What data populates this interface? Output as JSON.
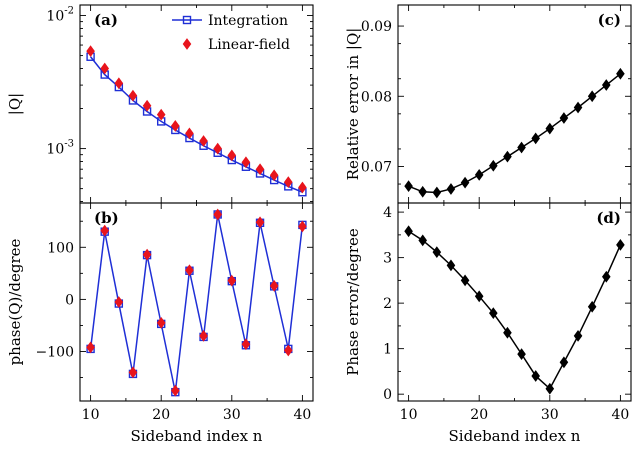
{
  "colors": {
    "integration": "#1f2fd6",
    "linear_field": "#e8141c",
    "error_series": "#000000"
  },
  "chart_data": [
    {
      "id": "a",
      "type": "line",
      "panel_label": "(a)",
      "ylabel": "|Q|",
      "yscale": "log",
      "ylim": [
        0.00039,
        0.012
      ],
      "yticks": [
        {
          "value": 0.001,
          "label": "10",
          "exp": "-3"
        },
        {
          "value": 0.01,
          "label": "10",
          "exp": "-2"
        }
      ],
      "xlim": [
        8.5,
        41.5
      ],
      "legend_position": "top-right",
      "series": [
        {
          "name": "Integration",
          "marker": "square",
          "x": [
            10,
            12,
            14,
            16,
            18,
            20,
            22,
            24,
            26,
            28,
            30,
            32,
            34,
            36,
            38,
            40
          ],
          "y": [
            0.0049,
            0.0036,
            0.0029,
            0.0023,
            0.0019,
            0.0016,
            0.00138,
            0.0012,
            0.00105,
            0.00093,
            0.00082,
            0.00073,
            0.00065,
            0.00058,
            0.00052,
            0.00047
          ]
        },
        {
          "name": "Linear-field",
          "marker": "diamond",
          "x": [
            10,
            12,
            14,
            16,
            18,
            20,
            22,
            24,
            26,
            28,
            30,
            32,
            34,
            36,
            38,
            40
          ],
          "y": [
            0.0054,
            0.004,
            0.0031,
            0.0025,
            0.0021,
            0.0018,
            0.00148,
            0.0013,
            0.00114,
            0.001,
            0.00089,
            0.00079,
            0.0007,
            0.00063,
            0.00056,
            0.00051
          ]
        }
      ]
    },
    {
      "id": "b",
      "type": "line",
      "panel_label": "(b)",
      "ylabel": "phase(Q)/degree",
      "xlabel": "Sideband index n",
      "ylim": [
        -195,
        185
      ],
      "yticks": [
        {
          "value": -100,
          "label": "−100"
        },
        {
          "value": 0,
          "label": "0"
        },
        {
          "value": 100,
          "label": "100"
        }
      ],
      "xlim": [
        8.5,
        41.5
      ],
      "xticks": [
        {
          "value": 10,
          "label": "10"
        },
        {
          "value": 20,
          "label": "20"
        },
        {
          "value": 30,
          "label": "30"
        },
        {
          "value": 40,
          "label": "40"
        }
      ],
      "series": [
        {
          "name": "Integration",
          "marker": "square",
          "x": [
            10,
            12,
            14,
            16,
            18,
            20,
            22,
            24,
            26,
            28,
            30,
            32,
            34,
            36,
            38,
            40
          ],
          "y": [
            -95,
            130,
            -8,
            -143,
            85,
            -47,
            -178,
            55,
            -72,
            163,
            35,
            -88,
            147,
            25,
            -95,
            143
          ]
        },
        {
          "name": "Linear-field",
          "marker": "diamond",
          "x": [
            10,
            12,
            14,
            16,
            18,
            20,
            22,
            24,
            26,
            28,
            30,
            32,
            34,
            36,
            38,
            40
          ],
          "y": [
            -92,
            132,
            -5,
            -140,
            86,
            -45,
            -175,
            56,
            -70,
            163,
            36,
            -86,
            148,
            26,
            -98,
            140
          ]
        }
      ]
    },
    {
      "id": "c",
      "type": "line",
      "panel_label": "(c)",
      "ylabel": "Relative error in |Q|",
      "ylim": [
        0.0648,
        0.093
      ],
      "yticks": [
        {
          "value": 0.07,
          "label": "0.07"
        },
        {
          "value": 0.08,
          "label": "0.08"
        },
        {
          "value": 0.09,
          "label": "0.09"
        }
      ],
      "xlim": [
        8.5,
        41.5
      ],
      "series": [
        {
          "marker": "diamond",
          "x": [
            10,
            12,
            14,
            16,
            18,
            20,
            22,
            24,
            26,
            28,
            30,
            32,
            34,
            36,
            38,
            40
          ],
          "y": [
            0.0672,
            0.0664,
            0.0663,
            0.0668,
            0.0677,
            0.0688,
            0.0701,
            0.0714,
            0.0727,
            0.074,
            0.0754,
            0.0769,
            0.0784,
            0.08,
            0.0816,
            0.0832
          ]
        }
      ]
    },
    {
      "id": "d",
      "type": "line",
      "panel_label": "(d)",
      "ylabel": "Phase error/degree",
      "xlabel": "Sideband index n",
      "ylim": [
        -0.15,
        4.2
      ],
      "yticks": [
        {
          "value": 0,
          "label": "0"
        },
        {
          "value": 1,
          "label": "1"
        },
        {
          "value": 2,
          "label": "2"
        },
        {
          "value": 3,
          "label": "3"
        },
        {
          "value": 4,
          "label": "4"
        }
      ],
      "xlim": [
        8.5,
        41.5
      ],
      "xticks": [
        {
          "value": 10,
          "label": "10"
        },
        {
          "value": 20,
          "label": "20"
        },
        {
          "value": 30,
          "label": "30"
        },
        {
          "value": 40,
          "label": "40"
        }
      ],
      "series": [
        {
          "marker": "diamond",
          "x": [
            10,
            12,
            14,
            16,
            18,
            20,
            22,
            24,
            26,
            28,
            30,
            32,
            34,
            36,
            38,
            40
          ],
          "y": [
            3.58,
            3.38,
            3.12,
            2.83,
            2.5,
            2.15,
            1.78,
            1.35,
            0.88,
            0.4,
            0.12,
            0.7,
            1.28,
            1.92,
            2.58,
            3.28
          ]
        }
      ]
    }
  ]
}
